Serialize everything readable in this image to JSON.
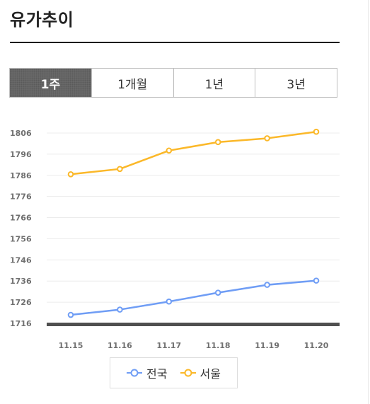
{
  "page": {
    "title": "유가추이"
  },
  "tabs": [
    {
      "label": "1주",
      "active": true
    },
    {
      "label": "1개월",
      "active": false
    },
    {
      "label": "1년",
      "active": false
    },
    {
      "label": "3년",
      "active": false
    }
  ],
  "chart_data": {
    "type": "line",
    "categories": [
      "11.15",
      "11.16",
      "11.17",
      "11.18",
      "11.19",
      "11.20"
    ],
    "series": [
      {
        "name": "전국",
        "color": "#6f9df5",
        "values": [
          1720,
          1722.5,
          1726.3,
          1730.5,
          1734.2,
          1736.2
        ]
      },
      {
        "name": "서울",
        "color": "#fbb829",
        "values": [
          1786.5,
          1789,
          1797.7,
          1801.7,
          1803.5,
          1806.6
        ]
      }
    ],
    "ylim": [
      1716,
      1806
    ],
    "yticks": [
      1806,
      1796,
      1786,
      1776,
      1766,
      1756,
      1746,
      1736,
      1726,
      1716
    ],
    "grid": true,
    "legend": "bottom"
  }
}
